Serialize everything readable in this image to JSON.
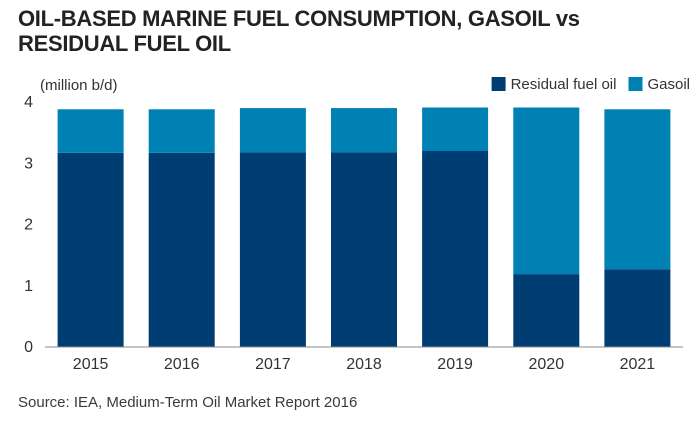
{
  "title": "OIL-BASED MARINE FUEL CONSUMPTION, GASOIL vs RESIDUAL FUEL OIL",
  "source": "Source: IEA, Medium-Term Oil Market Report 2016",
  "colors": {
    "residual": "#003d73",
    "gasoil": "#0081b3",
    "axis": "#8a8a8a"
  },
  "chart_data": {
    "type": "bar",
    "stacked": true,
    "categories": [
      "2015",
      "2016",
      "2017",
      "2018",
      "2019",
      "2020",
      "2021"
    ],
    "series": [
      {
        "name": "Residual fuel oil",
        "values": [
          3.17,
          3.17,
          3.18,
          3.18,
          3.2,
          1.19,
          1.27
        ]
      },
      {
        "name": "Gasoil",
        "values": [
          0.71,
          0.71,
          0.72,
          0.72,
          0.71,
          2.72,
          2.61
        ]
      }
    ],
    "ylabel": "(million b/d)",
    "ylim": [
      0,
      4
    ],
    "yticks": [
      "0",
      "1",
      "2",
      "3",
      "4"
    ],
    "legend_position": "top-right",
    "grid": false
  }
}
